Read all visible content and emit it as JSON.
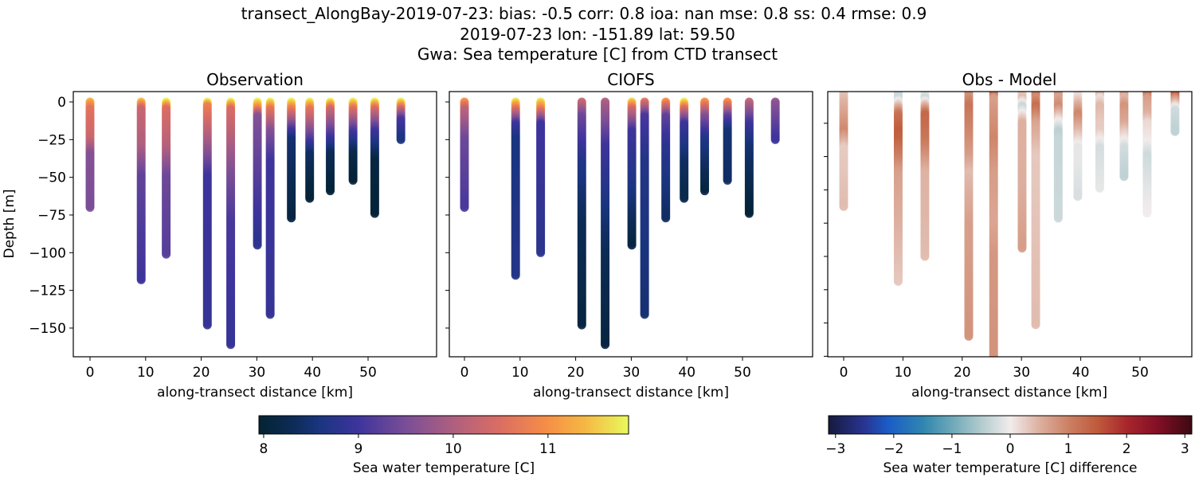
{
  "figure": {
    "title_lines": [
      "transect_AlongBay-2019-07-23: bias: -0.5  corr: 0.8  ioa: nan  mse: 0.8  ss: 0.4  rmse: 0.9",
      "2019-07-23 lon: -151.89 lat: 59.50",
      "Gwa: Sea temperature [C] from CTD transect"
    ]
  },
  "chart_data": [
    {
      "type": "scatter",
      "title": "Observation",
      "xlabel": "along-transect distance [km]",
      "ylabel": "Depth [m]",
      "xlim": [
        -3,
        62.3
      ],
      "ylim": [
        -169,
        6.9
      ],
      "xticks": [
        "0",
        "10",
        "20",
        "30",
        "40",
        "50"
      ],
      "yticks": [
        "0",
        "−25",
        "−50",
        "−75",
        "−100",
        "−125",
        "−150"
      ],
      "casts": [
        {
          "x": 0,
          "depth": 70,
          "profile": [
            [
              0,
              11.3
            ],
            [
              5,
              10.6
            ],
            [
              25,
              10.3
            ],
            [
              35,
              9.6
            ],
            [
              70,
              9.5
            ]
          ]
        },
        {
          "x": 9.2,
          "depth": 118,
          "profile": [
            [
              0,
              11.4
            ],
            [
              5,
              10.3
            ],
            [
              30,
              10.0
            ],
            [
              50,
              9.3
            ],
            [
              118,
              9.0
            ]
          ]
        },
        {
          "x": 13.7,
          "depth": 101,
          "profile": [
            [
              0,
              11.8
            ],
            [
              5,
              10.5
            ],
            [
              30,
              10.1
            ],
            [
              50,
              9.4
            ],
            [
              101,
              9.2
            ]
          ]
        },
        {
          "x": 21.1,
          "depth": 148,
          "profile": [
            [
              0,
              11.8
            ],
            [
              3,
              10.8
            ],
            [
              30,
              9.8
            ],
            [
              50,
              9.0
            ],
            [
              148,
              8.9
            ]
          ]
        },
        {
          "x": 25.3,
          "depth": 161,
          "profile": [
            [
              0,
              11.8
            ],
            [
              5,
              10.5
            ],
            [
              50,
              9.5
            ],
            [
              80,
              9.1
            ],
            [
              161,
              8.9
            ]
          ]
        },
        {
          "x": 30.1,
          "depth": 95,
          "profile": [
            [
              0,
              11.8
            ],
            [
              5,
              10.8
            ],
            [
              10,
              9.6
            ],
            [
              40,
              9.3
            ],
            [
              95,
              8.8
            ]
          ]
        },
        {
          "x": 32.4,
          "depth": 141,
          "profile": [
            [
              0,
              11.8
            ],
            [
              5,
              10.7
            ],
            [
              20,
              9.6
            ],
            [
              40,
              9.0
            ],
            [
              141,
              8.9
            ]
          ]
        },
        {
          "x": 36.2,
          "depth": 77,
          "profile": [
            [
              0,
              11.8
            ],
            [
              5,
              10.8
            ],
            [
              18,
              9.2
            ],
            [
              25,
              8.5
            ],
            [
              77,
              8.1
            ]
          ]
        },
        {
          "x": 39.5,
          "depth": 64,
          "profile": [
            [
              0,
              11.8
            ],
            [
              5,
              10.7
            ],
            [
              25,
              9.2
            ],
            [
              35,
              8.4
            ],
            [
              64,
              8.0
            ]
          ]
        },
        {
          "x": 43.2,
          "depth": 59,
          "profile": [
            [
              0,
              11.8
            ],
            [
              5,
              10.4
            ],
            [
              20,
              9.3
            ],
            [
              35,
              8.3
            ],
            [
              59,
              8.0
            ]
          ]
        },
        {
          "x": 47.3,
          "depth": 52,
          "profile": [
            [
              0,
              11.8
            ],
            [
              5,
              10.6
            ],
            [
              20,
              9.1
            ],
            [
              35,
              8.2
            ],
            [
              52,
              8.0
            ]
          ]
        },
        {
          "x": 51.2,
          "depth": 74,
          "profile": [
            [
              0,
              11.8
            ],
            [
              5,
              10.5
            ],
            [
              20,
              9.0
            ],
            [
              40,
              8.1
            ],
            [
              74,
              8.0
            ]
          ]
        },
        {
          "x": 55.9,
          "depth": 25,
          "profile": [
            [
              0,
              11.8
            ],
            [
              5,
              10.4
            ],
            [
              12,
              9.1
            ],
            [
              25,
              8.6
            ]
          ]
        }
      ]
    },
    {
      "type": "scatter",
      "title": "CIOFS",
      "xlabel": "along-transect distance [km]",
      "xlim": [
        -3,
        62.3
      ],
      "ylim": [
        -169,
        6.9
      ],
      "xticks": [
        "0",
        "10",
        "20",
        "30",
        "40",
        "50"
      ],
      "casts": [
        {
          "x": 0,
          "depth": 70,
          "profile": [
            [
              0,
              11.0
            ],
            [
              5,
              10.2
            ],
            [
              25,
              9.4
            ],
            [
              70,
              9.1
            ]
          ]
        },
        {
          "x": 9.2,
          "depth": 115,
          "profile": [
            [
              0,
              11.7
            ],
            [
              5,
              10.6
            ],
            [
              15,
              9.0
            ],
            [
              25,
              8.6
            ],
            [
              115,
              8.7
            ]
          ]
        },
        {
          "x": 13.7,
          "depth": 100,
          "profile": [
            [
              0,
              11.7
            ],
            [
              5,
              10.8
            ],
            [
              15,
              9.0
            ],
            [
              100,
              8.8
            ]
          ]
        },
        {
          "x": 21.1,
          "depth": 148,
          "profile": [
            [
              0,
              10.3
            ],
            [
              10,
              9.4
            ],
            [
              40,
              8.7
            ],
            [
              80,
              8.3
            ],
            [
              148,
              8.1
            ]
          ]
        },
        {
          "x": 25.3,
          "depth": 161,
          "profile": [
            [
              0,
              10.0
            ],
            [
              30,
              9.0
            ],
            [
              50,
              8.8
            ],
            [
              100,
              8.3
            ],
            [
              161,
              8.1
            ]
          ]
        },
        {
          "x": 30.1,
          "depth": 95,
          "profile": [
            [
              0,
              11.6
            ],
            [
              5,
              10.4
            ],
            [
              20,
              9.0
            ],
            [
              60,
              8.6
            ],
            [
              95,
              8.1
            ]
          ]
        },
        {
          "x": 32.4,
          "depth": 141,
          "profile": [
            [
              0,
              10.6
            ],
            [
              10,
              9.1
            ],
            [
              40,
              8.7
            ],
            [
              141,
              8.5
            ]
          ]
        },
        {
          "x": 36.2,
          "depth": 77,
          "profile": [
            [
              0,
              11.0
            ],
            [
              10,
              9.3
            ],
            [
              30,
              8.8
            ],
            [
              77,
              8.4
            ]
          ]
        },
        {
          "x": 39.5,
          "depth": 64,
          "profile": [
            [
              0,
              11.8
            ],
            [
              5,
              10.5
            ],
            [
              15,
              9.0
            ],
            [
              40,
              8.4
            ],
            [
              64,
              8.2
            ]
          ]
        },
        {
          "x": 43.2,
          "depth": 59,
          "profile": [
            [
              0,
              11.0
            ],
            [
              10,
              9.6
            ],
            [
              25,
              8.7
            ],
            [
              59,
              8.1
            ]
          ]
        },
        {
          "x": 47.3,
          "depth": 52,
          "profile": [
            [
              0,
              11.0
            ],
            [
              10,
              9.3
            ],
            [
              20,
              8.5
            ],
            [
              52,
              8.4
            ]
          ]
        },
        {
          "x": 51.2,
          "depth": 74,
          "profile": [
            [
              0,
              10.2
            ],
            [
              15,
              9.0
            ],
            [
              30,
              8.5
            ],
            [
              74,
              8.0
            ]
          ]
        },
        {
          "x": 55.9,
          "depth": 25,
          "profile": [
            [
              0,
              9.7
            ],
            [
              25,
              9.0
            ]
          ]
        }
      ]
    },
    {
      "type": "scatter",
      "title": "Obs - Model",
      "xlabel": "along-transect distance [km]",
      "xlim": [
        -2.7,
        58.7
      ],
      "ylim": [
        -160.5,
        -1
      ],
      "yticks_values": [
        -20,
        -40,
        -60,
        -80,
        -100,
        -120,
        -140,
        -160
      ],
      "xticks": [
        "0",
        "10",
        "20",
        "30",
        "40",
        "50"
      ],
      "values": "Observation minus CIOFS"
    }
  ],
  "colorbars": [
    {
      "label": "Sea water temperature [C]",
      "range": [
        7.95,
        11.85
      ],
      "ticks": [
        "8",
        "9",
        "10",
        "11"
      ],
      "tick_values": [
        8,
        9,
        10,
        11
      ],
      "colormap": "thermal",
      "stops": [
        [
          7.95,
          "#042333"
        ],
        [
          8.3,
          "#0d2b55"
        ],
        [
          8.6,
          "#1b3580"
        ],
        [
          9.0,
          "#3e349c"
        ],
        [
          9.5,
          "#7a4e97"
        ],
        [
          10.0,
          "#af5f80"
        ],
        [
          10.5,
          "#db6e62"
        ],
        [
          11.0,
          "#f68f46"
        ],
        [
          11.4,
          "#f5b944"
        ],
        [
          11.85,
          "#e8fa5b"
        ]
      ]
    },
    {
      "label": "Sea water temperature [C] difference",
      "range": [
        -3.12,
        3.12
      ],
      "ticks": [
        "−3",
        "−2",
        "−1",
        "0",
        "1",
        "2",
        "3"
      ],
      "tick_values": [
        -3,
        -2,
        -1,
        0,
        1,
        2,
        3
      ],
      "colormap": "balance",
      "stops": [
        [
          -3.12,
          "#161a3c"
        ],
        [
          -2.5,
          "#283593"
        ],
        [
          -2.1,
          "#1a5cc6"
        ],
        [
          -1.5,
          "#2f86b0"
        ],
        [
          -1.0,
          "#6ea8b8"
        ],
        [
          -0.5,
          "#b2cbce"
        ],
        [
          0,
          "#f1ecec"
        ],
        [
          0.5,
          "#ddb0a0"
        ],
        [
          1.0,
          "#cc8064"
        ],
        [
          1.5,
          "#c05a3c"
        ],
        [
          2.0,
          "#a8262c"
        ],
        [
          2.5,
          "#861026"
        ],
        [
          3.12,
          "#3c0911"
        ]
      ]
    }
  ]
}
